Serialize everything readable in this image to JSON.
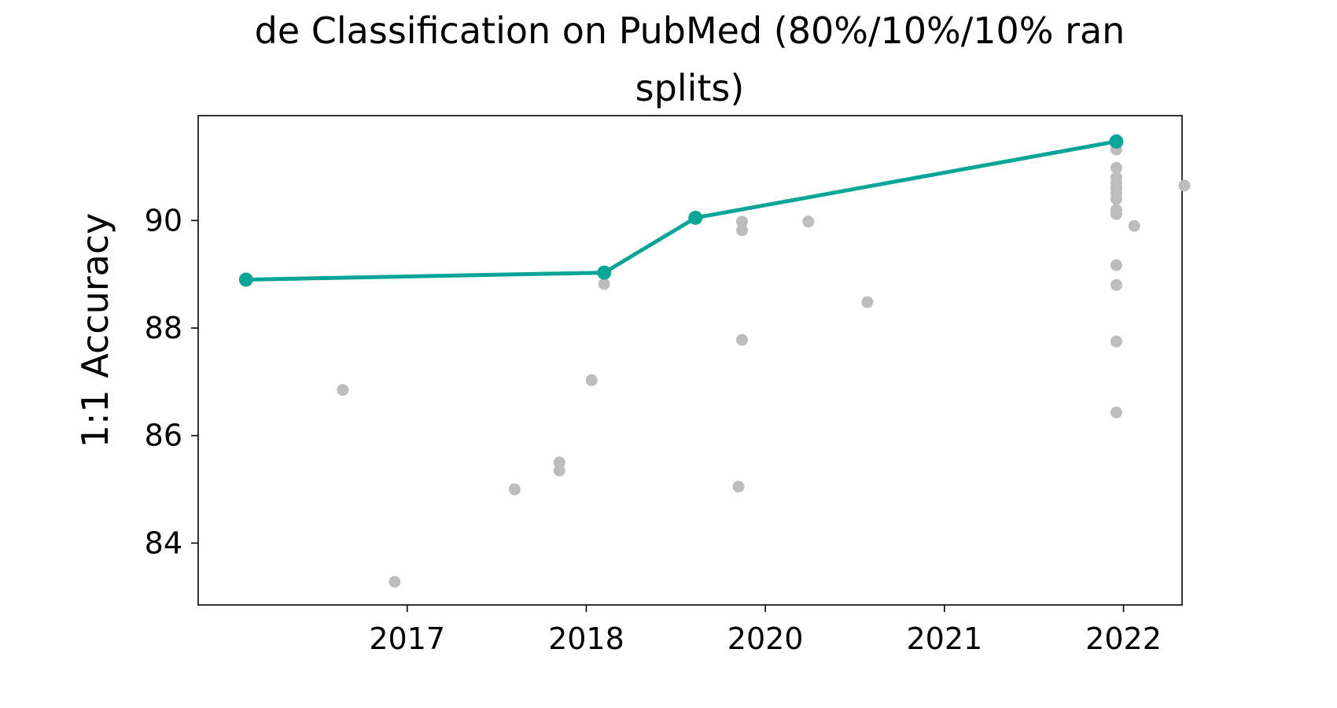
{
  "chart_data": {
    "type": "scatter",
    "title_lines": [
      "de Classification on PubMed (80%/10%/10% ran",
      "splits)"
    ],
    "xlabel": "",
    "ylabel": "1:1 Accuracy",
    "x_ticks": [
      {
        "label": "2017",
        "x": 2016.4
      },
      {
        "label": "2018",
        "x": 2017.4
      },
      {
        "label": "2020",
        "x": 2018.4
      },
      {
        "label": "2021",
        "x": 2019.4
      },
      {
        "label": "2022",
        "x": 2020.4
      }
    ],
    "xlim": [
      2015.233,
      2020.727
    ],
    "y_ticks": [
      84,
      86,
      88,
      90
    ],
    "ylim": [
      82.85,
      91.95
    ],
    "grid": false,
    "colors": {
      "frontier": "#0BA597",
      "others": "#BDBDBD"
    },
    "series": [
      {
        "name": "",
        "role": "frontier",
        "x": [
          2015.5,
          2017.5,
          2018.01,
          2020.36
        ],
        "y": [
          88.9,
          89.03,
          90.05,
          91.47
        ]
      },
      {
        "name": "",
        "role": "others",
        "x": [
          2016.04,
          2016.33,
          2017.0,
          2017.25,
          2017.25,
          2017.43,
          2017.5,
          2018.25,
          2018.27,
          2018.27,
          2018.27,
          2018.64,
          2018.97,
          2020.36,
          2020.36,
          2020.36,
          2020.36,
          2020.36,
          2020.36,
          2020.36,
          2020.36,
          2020.36,
          2020.36,
          2020.36,
          2020.36,
          2020.36,
          2020.36,
          2020.46,
          2020.74
        ],
        "y": [
          86.85,
          83.28,
          85.0,
          85.5,
          85.35,
          87.03,
          88.82,
          85.05,
          87.78,
          89.98,
          89.82,
          89.98,
          88.48,
          91.32,
          90.98,
          90.8,
          90.7,
          90.6,
          90.5,
          90.4,
          90.2,
          90.12,
          89.17,
          88.8,
          87.75,
          86.43,
          90.6,
          89.9,
          90.65
        ]
      }
    ]
  }
}
